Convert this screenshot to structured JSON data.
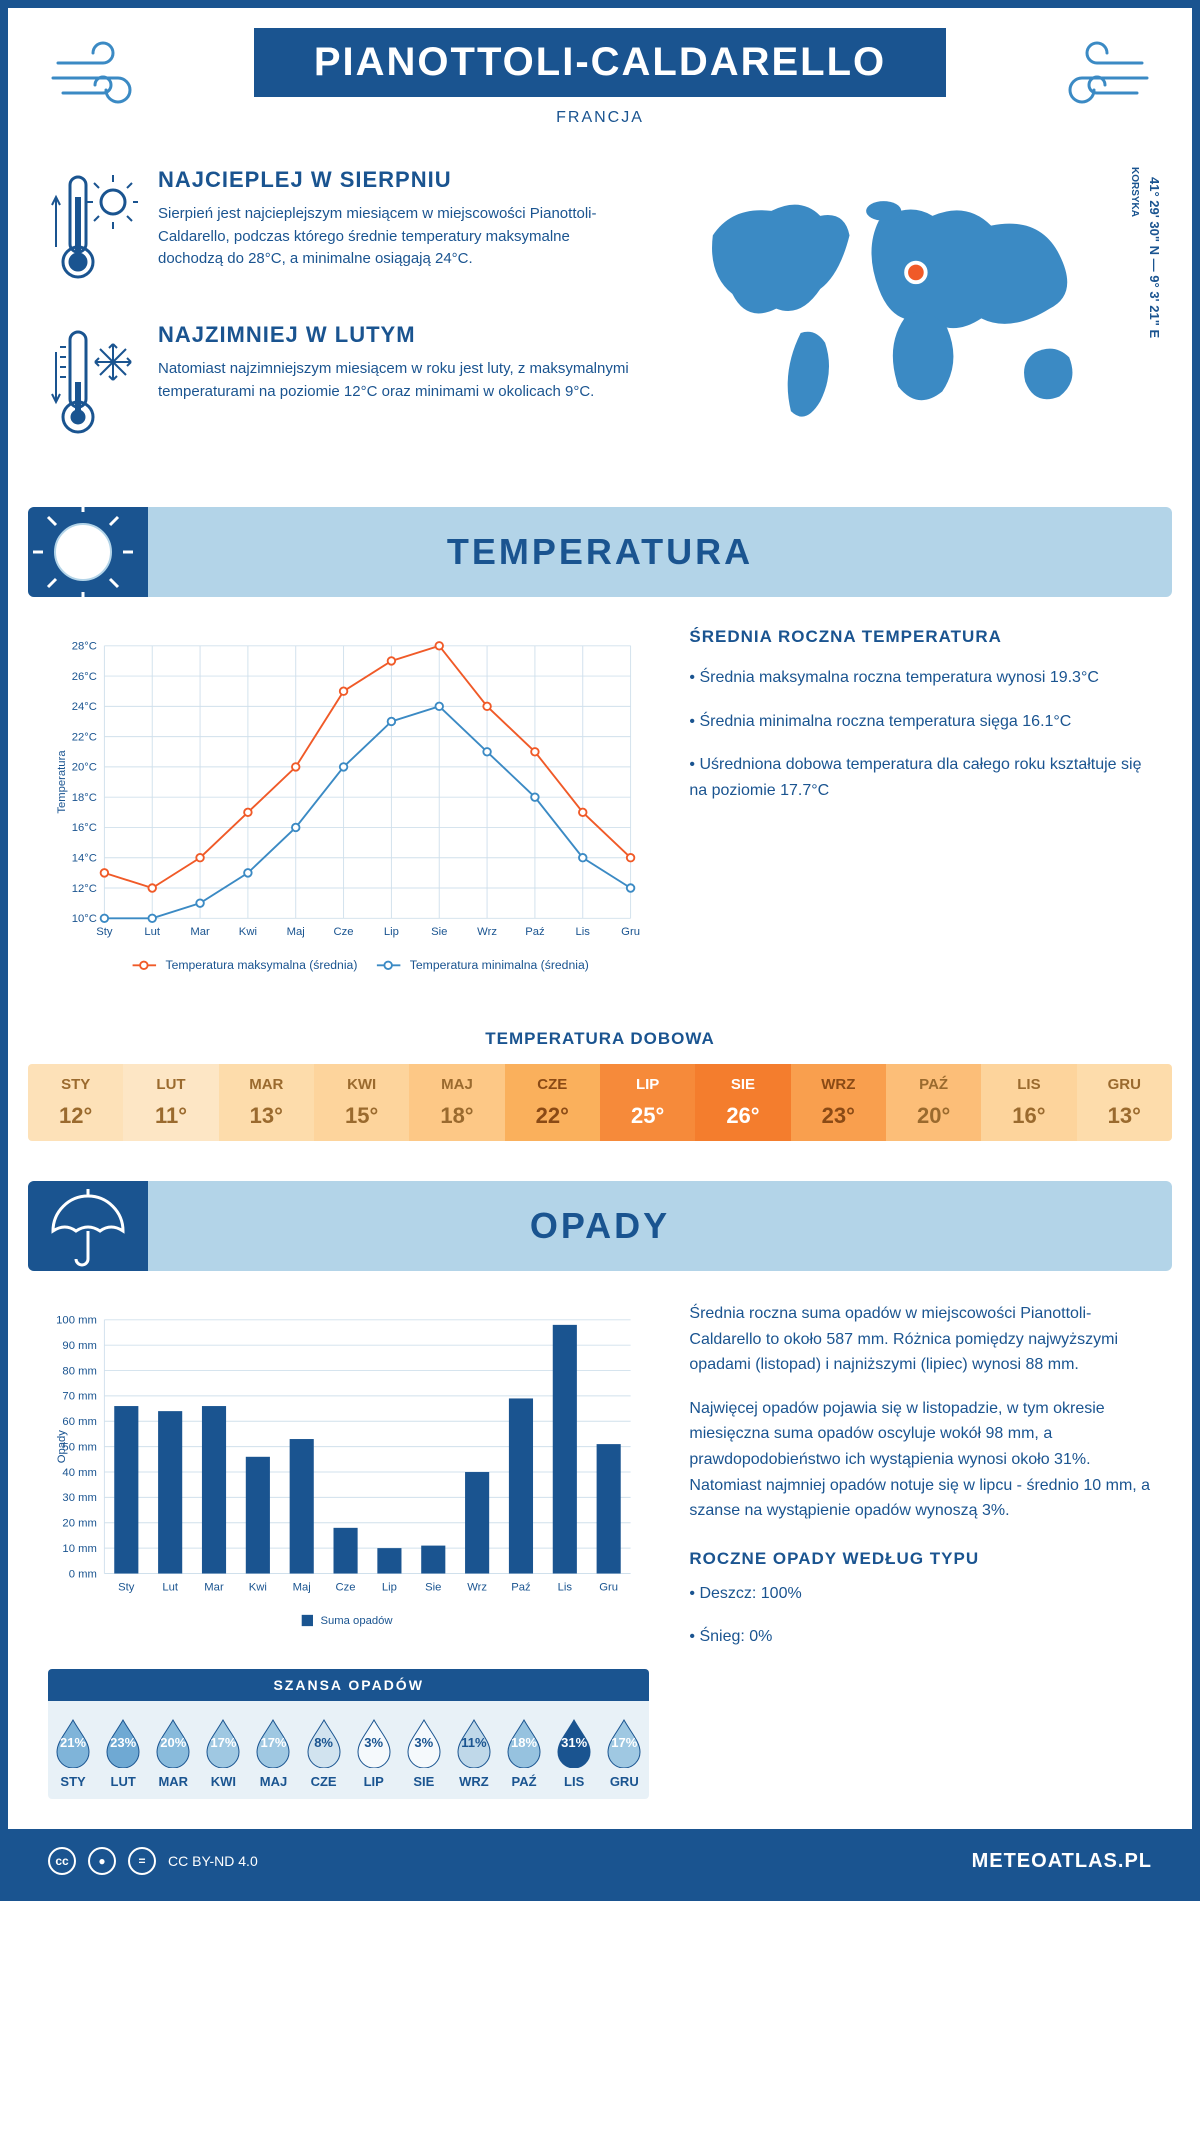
{
  "header": {
    "title": "PIANOTTOLI-CALDARELLO",
    "country": "FRANCJA"
  },
  "coords": {
    "lat_lon": "41° 29' 30\" N — 9° 3' 21\" E",
    "region": "KORSYKA"
  },
  "facts": {
    "hot": {
      "title": "NAJCIEPLEJ W SIERPNIU",
      "text": "Sierpień jest najcieplejszym miesiącem w miejscowości Pianottoli-Caldarello, podczas którego średnie temperatury maksymalne dochodzą do 28°C, a minimalne osiągają 24°C."
    },
    "cold": {
      "title": "NAJZIMNIEJ W LUTYM",
      "text": "Natomiast najzimniejszym miesiącem w roku jest luty, z maksymalnymi temperaturami na poziomie 12°C oraz minimami w okolicach 9°C."
    }
  },
  "sections": {
    "temperature": "TEMPERATURA",
    "precipitation": "OPADY"
  },
  "temp_chart": {
    "type": "line",
    "months": [
      "Sty",
      "Lut",
      "Mar",
      "Kwi",
      "Maj",
      "Cze",
      "Lip",
      "Sie",
      "Wrz",
      "Paź",
      "Lis",
      "Gru"
    ],
    "series": [
      {
        "name": "Temperatura maksymalna (średnia)",
        "color": "#f05a28",
        "values": [
          13,
          12,
          14,
          17,
          20,
          25,
          27,
          28,
          24,
          21,
          17,
          14
        ]
      },
      {
        "name": "Temperatura minimalna (średnia)",
        "color": "#3b8ac4",
        "values": [
          10,
          10,
          11,
          13,
          16,
          20,
          23,
          24,
          21,
          18,
          14,
          12
        ]
      }
    ],
    "ylabel": "Temperatura",
    "ylim": [
      10,
      28
    ],
    "ytick_step": 2,
    "grid_color": "#d0e0ec",
    "background": "#ffffff",
    "marker": "circle",
    "line_width": 2
  },
  "temp_summary": {
    "title": "ŚREDNIA ROCZNA TEMPERATURA",
    "bullets": [
      "• Średnia maksymalna roczna temperatura wynosi 19.3°C",
      "• Średnia minimalna roczna temperatura sięga 16.1°C",
      "• Uśredniona dobowa temperatura dla całego roku kształtuje się na poziomie 17.7°C"
    ]
  },
  "daily_temp": {
    "title": "TEMPERATURA DOBOWA",
    "months": [
      "STY",
      "LUT",
      "MAR",
      "KWI",
      "MAJ",
      "CZE",
      "LIP",
      "SIE",
      "WRZ",
      "PAŹ",
      "LIS",
      "GRU"
    ],
    "values": [
      "12°",
      "11°",
      "13°",
      "15°",
      "18°",
      "22°",
      "25°",
      "26°",
      "23°",
      "20°",
      "16°",
      "13°"
    ],
    "temps": [
      12,
      11,
      13,
      15,
      18,
      22,
      25,
      26,
      23,
      20,
      16,
      13
    ],
    "colors": [
      "#fde1b8",
      "#fde6c5",
      "#fddcab",
      "#fdd49c",
      "#fdc886",
      "#fab05c",
      "#f68a3a",
      "#f47d2d",
      "#f99f4e",
      "#fcbe78",
      "#fdd49c",
      "#fddcab"
    ],
    "text_colors": [
      "#9a6a2e",
      "#9a6a2e",
      "#9a6a2e",
      "#9a6a2e",
      "#9a6a2e",
      "#8a4a15",
      "#ffffff",
      "#ffffff",
      "#8a4a15",
      "#9a6a2e",
      "#9a6a2e",
      "#9a6a2e"
    ]
  },
  "precip_chart": {
    "type": "bar",
    "months": [
      "Sty",
      "Lut",
      "Mar",
      "Kwi",
      "Maj",
      "Cze",
      "Lip",
      "Sie",
      "Wrz",
      "Paź",
      "Lis",
      "Gru"
    ],
    "values": [
      66,
      64,
      66,
      46,
      53,
      18,
      10,
      11,
      40,
      69,
      98,
      51
    ],
    "bar_color": "#1a5490",
    "ylabel": "Opady",
    "ylim": [
      0,
      100
    ],
    "ytick_step": 10,
    "grid_color": "#d0e0ec",
    "legend": "Suma opadów",
    "bar_width": 0.55
  },
  "precip_text": {
    "p1": "Średnia roczna suma opadów w miejscowości Pianottoli-Caldarello to około 587 mm. Różnica pomiędzy najwyższymi opadami (listopad) i najniższymi (lipiec) wynosi 88 mm.",
    "p2": "Najwięcej opadów pojawia się w listopadzie, w tym okresie miesięczna suma opadów oscyluje wokół 98 mm, a prawdopodobieństwo ich wystąpienia wynosi około 31%. Natomiast najmniej opadów notuje się w lipcu - średnio 10 mm, a szanse na wystąpienie opadów wynoszą 3%.",
    "type_title": "ROCZNE OPADY WEDŁUG TYPU",
    "types": [
      "• Deszcz: 100%",
      "• Śnieg: 0%"
    ]
  },
  "chance": {
    "title": "SZANSA OPADÓW",
    "months": [
      "STY",
      "LUT",
      "MAR",
      "KWI",
      "MAJ",
      "CZE",
      "LIP",
      "SIE",
      "WRZ",
      "PAŹ",
      "LIS",
      "GRU"
    ],
    "values": [
      "21%",
      "23%",
      "20%",
      "17%",
      "17%",
      "8%",
      "3%",
      "3%",
      "11%",
      "18%",
      "31%",
      "17%"
    ],
    "pct": [
      21,
      23,
      20,
      17,
      17,
      8,
      3,
      3,
      11,
      18,
      31,
      17
    ],
    "fills": [
      "#7fb4d9",
      "#6fa9d3",
      "#89bbdc",
      "#9fc8e2",
      "#9fc8e2",
      "#d1e3ef",
      "#f5f9fc",
      "#f5f9fc",
      "#bfd8e9",
      "#96c2df",
      "#1a5490",
      "#9fc8e2"
    ],
    "text_colors": [
      "#ffffff",
      "#ffffff",
      "#ffffff",
      "#ffffff",
      "#ffffff",
      "#1a5490",
      "#1a5490",
      "#1a5490",
      "#1a5490",
      "#ffffff",
      "#ffffff",
      "#ffffff"
    ]
  },
  "footer": {
    "license": "CC BY-ND 4.0",
    "site": "METEOATLAS.PL"
  }
}
